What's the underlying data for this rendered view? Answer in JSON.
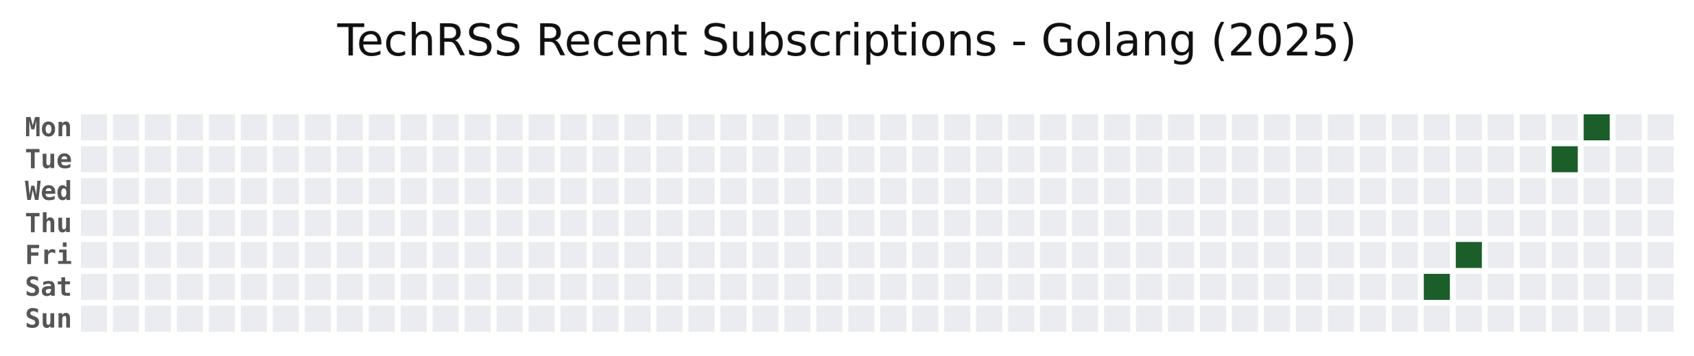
{
  "chart_data": {
    "type": "heatmap",
    "title": "TechRSS Recent Subscriptions - Golang  (2025)",
    "rows": [
      "Mon",
      "Tue",
      "Wed",
      "Thu",
      "Fri",
      "Sat",
      "Sun"
    ],
    "num_weeks": 50,
    "empty_color": "#ebecf0",
    "active_color": "#1b5e2a",
    "active_cells": [
      {
        "week": 42,
        "day": "Sat",
        "value": 1
      },
      {
        "week": 43,
        "day": "Fri",
        "value": 1
      },
      {
        "week": 46,
        "day": "Tue",
        "value": 1
      },
      {
        "week": 47,
        "day": "Mon",
        "value": 1
      }
    ]
  }
}
